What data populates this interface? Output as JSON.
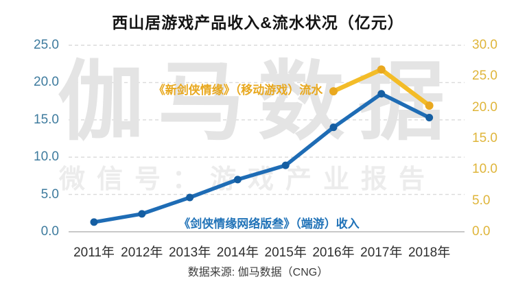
{
  "title": "西山居游戏产品收入&流水状况（亿元）",
  "source": "数据来源: 伽马数据（CNG）",
  "watermark": {
    "brand": "伽马数据",
    "wechat": "微信号：游戏产业报告"
  },
  "colors": {
    "title": "#141414",
    "left_axis_text": "#3E7B9E",
    "right_axis_text": "#DFB53A",
    "grid": "#DADADA",
    "baseline": "#C8C8C8",
    "x_label_text": "#2E2E2E",
    "blue_line": "#1E6CB5",
    "blue_marker": "#155EA2",
    "gold_line": "#F3BC28",
    "gold_marker": "#E9A81F",
    "watermark_big": "#E4E4E4",
    "watermark_small": "#ECECEC"
  },
  "chart_data": {
    "type": "line",
    "title": "西山居游戏产品收入&流水状况（亿元）",
    "categories": [
      "2011年",
      "2012年",
      "2013年",
      "2014年",
      "2015年",
      "2016年",
      "2017年",
      "2018年"
    ],
    "series": [
      {
        "id": "pc-revenue",
        "name": "《剑侠情缘网络版叁》（端游）收入",
        "axis": "left",
        "color": "#1E6CB5",
        "marker_color": "#155EA2",
        "values": [
          1.3,
          2.4,
          4.6,
          7.0,
          8.9,
          14.0,
          18.5,
          15.3
        ]
      },
      {
        "id": "mobile-flow",
        "name": "《新剑侠情缘》（移动游戏）流水",
        "axis": "right",
        "color": "#F3BC28",
        "marker_color": "#E9A81F",
        "values": [
          null,
          null,
          null,
          null,
          null,
          22.6,
          26.1,
          20.3
        ]
      }
    ],
    "left_axis": {
      "ticks": [
        "25.0",
        "20.0",
        "15.0",
        "10.0",
        "5.0",
        "0.0"
      ],
      "min": 0,
      "max": 25,
      "color": "#3E7B9E"
    },
    "right_axis": {
      "ticks": [
        "30.0",
        "25.0",
        "20.0",
        "15.0",
        "10.0",
        "5.0",
        "0.0"
      ],
      "min": 0,
      "max": 30,
      "color": "#DFB53A"
    },
    "grid": "horizontal-dashed",
    "legend_position": "inline-labels",
    "xlabel": "",
    "ylabel_left": "",
    "ylabel_right": ""
  }
}
